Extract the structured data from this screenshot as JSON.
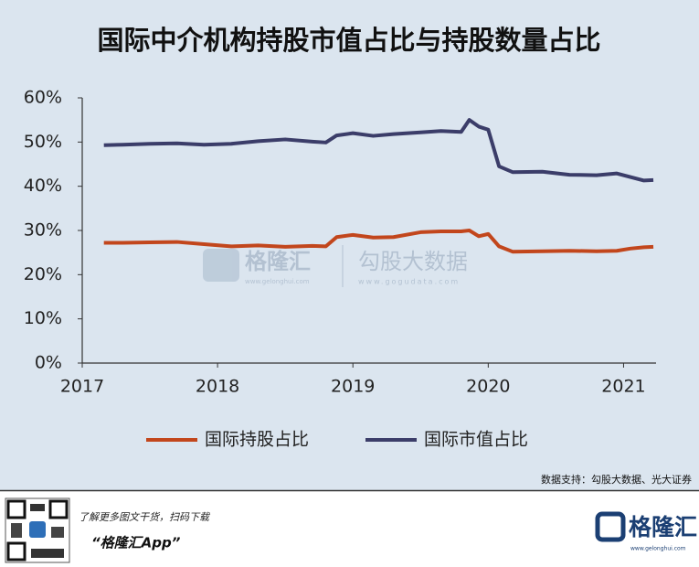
{
  "chart_data": {
    "type": "line",
    "title": "国际中介机构持股市值占比与持股数量占比",
    "x": [
      2017.16,
      2017.3,
      2017.5,
      2017.7,
      2017.9,
      2018.1,
      2018.3,
      2018.5,
      2018.7,
      2018.8,
      2018.88,
      2019.0,
      2019.15,
      2019.3,
      2019.5,
      2019.65,
      2019.8,
      2019.86,
      2019.93,
      2020.0,
      2020.08,
      2020.18,
      2020.4,
      2020.6,
      2020.8,
      2020.95,
      2021.05,
      2021.15,
      2021.22
    ],
    "series": [
      {
        "name": "国际持股占比",
        "color": "#c2461c",
        "values": [
          27.2,
          27.2,
          27.3,
          27.4,
          26.9,
          26.4,
          26.6,
          26.3,
          26.5,
          26.4,
          28.5,
          29,
          28.4,
          28.5,
          29.6,
          29.8,
          29.8,
          30,
          28.7,
          29.2,
          26.4,
          25.2,
          25.3,
          25.4,
          25.3,
          25.4,
          25.9,
          26.2,
          26.3
        ]
      },
      {
        "name": "国际市值占比",
        "color": "#3b3d69",
        "values": [
          49.3,
          49.4,
          49.6,
          49.7,
          49.4,
          49.6,
          50.2,
          50.6,
          50.1,
          49.9,
          51.5,
          52,
          51.4,
          51.8,
          52.2,
          52.5,
          52.3,
          55,
          53.5,
          52.8,
          44.5,
          43.2,
          43.3,
          42.6,
          42.5,
          42.9,
          42.1,
          41.3,
          41.4
        ]
      }
    ],
    "xlim": [
      2017,
      2021.24
    ],
    "xticks": [
      2017,
      2018,
      2019,
      2020,
      2021
    ],
    "ylim": [
      0,
      60
    ],
    "yticks": [
      {
        "value": 0,
        "label": "0%"
      },
      {
        "value": 10,
        "label": "10%"
      },
      {
        "value": 20,
        "label": "20%"
      },
      {
        "value": 30,
        "label": "30%"
      },
      {
        "value": 40,
        "label": "40%"
      },
      {
        "value": 50,
        "label": "50%"
      },
      {
        "value": 60,
        "label": "60%"
      }
    ],
    "legend": "bottom"
  },
  "watermark": {
    "left": "格隆汇",
    "left_url": "www.gelonghui.com",
    "right": "勾股大数据",
    "right_url": "www.gogudata.com"
  },
  "source": "数据支持：勾股大数据、光大证券",
  "footer": {
    "prompt": "了解更多图文干货，扫码下载",
    "app": "“格隆汇App”",
    "logo": "格隆汇",
    "logo_url": "www.gelonghui.com"
  }
}
